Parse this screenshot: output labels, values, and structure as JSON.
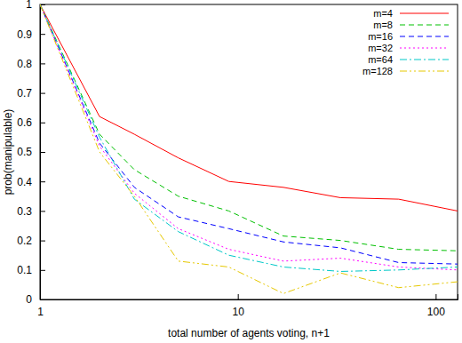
{
  "chart_data": {
    "type": "line",
    "x_label": "total number of agents voting, n+1",
    "y_label": "prob(manipulable)",
    "x": [
      1,
      2,
      3,
      5,
      9,
      17,
      33,
      65,
      129
    ],
    "series": [
      {
        "name": "m=4",
        "color": "#ff0000",
        "line_style": "solid",
        "values": [
          1,
          0.62,
          0.56,
          0.48,
          0.4,
          0.38,
          0.345,
          0.34,
          0.3
        ]
      },
      {
        "name": "m=8",
        "color": "#00c000",
        "line_style": "dashed",
        "values": [
          1,
          0.56,
          0.44,
          0.35,
          0.3,
          0.215,
          0.2,
          0.17,
          0.165
        ]
      },
      {
        "name": "m=16",
        "color": "#0000ff",
        "line_style": "dashed",
        "values": [
          1,
          0.53,
          0.38,
          0.28,
          0.24,
          0.195,
          0.175,
          0.125,
          0.12
        ]
      },
      {
        "name": "m=32",
        "color": "#ff00ff",
        "line_style": "dotted",
        "values": [
          1,
          0.52,
          0.36,
          0.24,
          0.17,
          0.13,
          0.14,
          0.11,
          0.1
        ]
      },
      {
        "name": "m=64",
        "color": "#00c8c8",
        "line_style": "dashdot",
        "values": [
          1,
          0.55,
          0.34,
          0.23,
          0.15,
          0.11,
          0.095,
          0.1,
          0.11
        ]
      },
      {
        "name": "m=128",
        "color": "#e6c800",
        "line_style": "dashdotdot",
        "values": [
          1,
          0.5,
          0.35,
          0.13,
          0.11,
          0.02,
          0.09,
          0.04,
          0.06
        ]
      }
    ],
    "xlim": [
      1,
      129
    ],
    "xticks": [
      1,
      10,
      100
    ],
    "ylim": [
      0,
      1
    ],
    "yticks": [
      0,
      0.1,
      0.2,
      0.3,
      0.4,
      0.5,
      0.6,
      0.7,
      0.8,
      0.9,
      1
    ],
    "log": "x",
    "grid": false,
    "legend": "top-right"
  }
}
